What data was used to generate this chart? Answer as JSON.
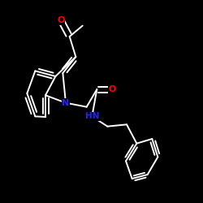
{
  "background_color": "#000000",
  "bond_color": "#ffffff",
  "N_color": "#2222ff",
  "O_color": "#ff0000",
  "figsize": [
    2.5,
    2.5
  ],
  "dpi": 100,
  "lw": 1.4,
  "xlim": [
    0,
    250
  ],
  "ylim": [
    0,
    250
  ]
}
